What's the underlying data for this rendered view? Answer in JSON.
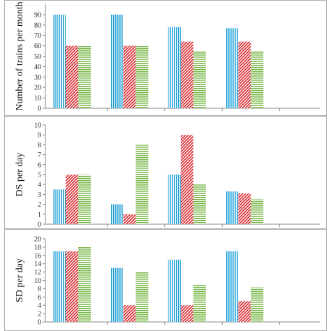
{
  "chart_data": [
    {
      "type": "bar",
      "title": "",
      "xlabel": "",
      "ylabel": "Number of trains per month",
      "ylim": [
        0,
        100
      ],
      "yticks": [
        0,
        10,
        20,
        30,
        40,
        50,
        60,
        70,
        80,
        90
      ],
      "categories": [
        "",
        "",
        "",
        ""
      ],
      "series": [
        {
          "values": [
            90,
            90,
            78,
            77
          ]
        },
        {
          "values": [
            60,
            60,
            64,
            64
          ]
        },
        {
          "values": [
            60,
            60,
            55,
            55
          ]
        }
      ]
    },
    {
      "type": "bar",
      "title": "",
      "xlabel": "",
      "ylabel": "DS per day",
      "ylim": [
        0,
        10
      ],
      "yticks": [
        0,
        1,
        2,
        3,
        4,
        5,
        6,
        7,
        8,
        9,
        10
      ],
      "categories": [
        "",
        "",
        "",
        ""
      ],
      "series": [
        {
          "values": [
            3.5,
            2,
            5,
            3.3
          ]
        },
        {
          "values": [
            5,
            1,
            9,
            3.1
          ]
        },
        {
          "values": [
            5,
            8,
            4,
            2.5
          ]
        }
      ]
    },
    {
      "type": "bar",
      "title": "",
      "xlabel": "",
      "ylabel": "SD per day",
      "ylim": [
        0,
        20
      ],
      "yticks": [
        0,
        2,
        4,
        6,
        8,
        10,
        12,
        14,
        16,
        18,
        20
      ],
      "categories": [
        "",
        "",
        "",
        ""
      ],
      "series": [
        {
          "values": [
            17,
            13,
            15,
            17
          ]
        },
        {
          "values": [
            17,
            4,
            4,
            5
          ]
        },
        {
          "values": [
            18,
            12,
            9,
            8.3
          ]
        }
      ]
    }
  ],
  "colors": {
    "series_1": "#1b9fd6",
    "series_2": "#d8262c",
    "series_3": "#7ab84a",
    "axis": "#888888",
    "border": "#b0b0b0"
  },
  "patterns": [
    "vertical-lines",
    "diagonal-hatch",
    "horizontal-lines"
  ]
}
